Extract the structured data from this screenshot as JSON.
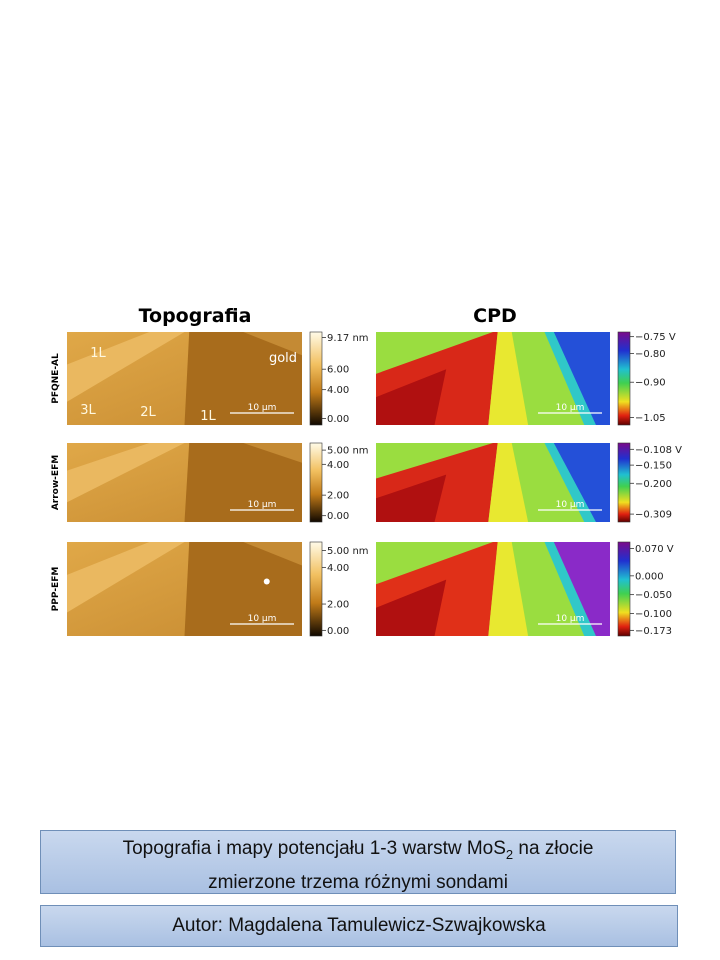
{
  "header": {
    "titles": [
      "Topografia",
      "CPD"
    ]
  },
  "rows": [
    {
      "probe": "PFQNE-AL",
      "topo_scale": [
        "9.17 nm",
        "6.00",
        "4.00",
        "0.00"
      ],
      "cpd_scale": [
        "−0.75 V",
        "−0.80",
        "−0.90",
        "−1.05"
      ],
      "scale_bar": "10 µm",
      "labels": [
        "1L",
        "gold",
        "3L",
        "2L",
        "1L"
      ]
    },
    {
      "probe": "Arrow-EFM",
      "topo_scale": [
        "5.00 nm",
        "4.00",
        "2.00",
        "0.00"
      ],
      "cpd_scale": [
        "−0.108 V",
        "−0.150",
        "−0.200",
        "−0.309"
      ],
      "scale_bar": "10 µm"
    },
    {
      "probe": "PPP-EFM",
      "topo_scale": [
        "5.00 nm",
        "4.00",
        "2.00",
        "0.00"
      ],
      "cpd_scale": [
        "0.070 V",
        "0.000",
        "−0.050",
        "−0.100",
        "−0.173"
      ],
      "scale_bar": "10 µm"
    }
  ],
  "caption": {
    "line1_pre": "Topografia i mapy potencjału 1-3 warstw MoS",
    "line1_sub": "2",
    "line1_post": " na złocie",
    "line2": "zmierzone trzema różnymi sondami"
  },
  "author": "Autor: Magdalena Tamulewicz-Szwajkowska"
}
